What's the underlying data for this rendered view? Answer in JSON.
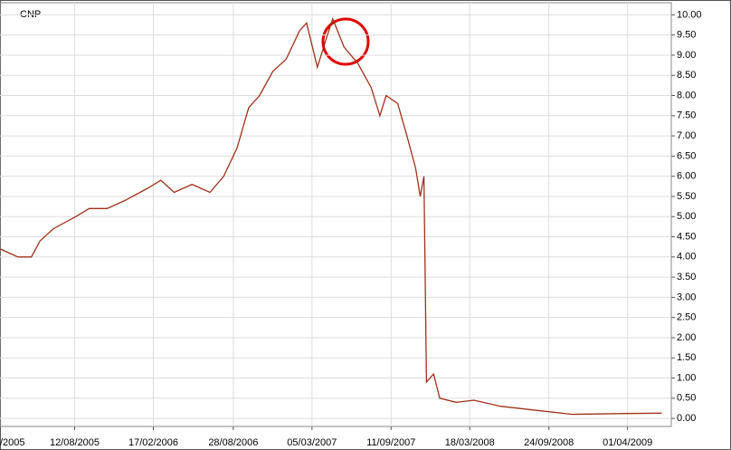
{
  "chart_data": {
    "type": "line",
    "title": "CNP",
    "x": [
      "2005-02-14",
      "2005-03-29",
      "2005-04-30",
      "2005-05-21",
      "2005-06-22",
      "2005-08-15",
      "2005-09-16",
      "2005-10-29",
      "2005-12-11",
      "2006-02-03",
      "2006-03-07",
      "2006-04-08",
      "2006-05-21",
      "2006-07-03",
      "2006-08-05",
      "2006-09-06",
      "2006-10-04",
      "2006-10-30",
      "2006-12-01",
      "2007-01-02",
      "2007-02-03",
      "2007-02-20",
      "2007-03-18",
      "2007-04-08",
      "2007-04-24",
      "2007-05-21",
      "2007-06-23",
      "2007-07-25",
      "2007-08-15",
      "2007-08-30",
      "2007-09-27",
      "2007-10-19",
      "2007-11-09",
      "2007-11-20",
      "2007-11-29",
      "2007-12-05",
      "2007-12-22",
      "2008-01-06",
      "2008-02-14",
      "2008-03-28",
      "2008-05-31",
      "2008-08-25",
      "2008-11-19",
      "2009-03-28",
      "2009-06-22"
    ],
    "series": [
      {
        "name": "CNP",
        "color": "#a0301a",
        "values": [
          4.2,
          4.0,
          4.0,
          4.4,
          4.7,
          5.0,
          5.2,
          5.2,
          5.4,
          5.7,
          5.9,
          5.6,
          5.8,
          5.6,
          6.0,
          6.7,
          7.7,
          8.0,
          8.6,
          8.9,
          9.6,
          9.8,
          8.7,
          9.4,
          9.9,
          9.2,
          8.8,
          8.2,
          7.5,
          8.0,
          7.8,
          7.0,
          6.2,
          5.5,
          6.0,
          0.9,
          1.1,
          0.5,
          0.4,
          0.45,
          0.3,
          0.2,
          0.1,
          0.12,
          0.13
        ]
      }
    ],
    "xlim": [
      "2005-02-05",
      "2009-07-15"
    ],
    "xticks": [
      {
        "value": "2005-02-05",
        "label": "/2005"
      },
      {
        "value": "2005-08-12",
        "label": "12/08/2005"
      },
      {
        "value": "2006-02-17",
        "label": "17/02/2006"
      },
      {
        "value": "2006-08-28",
        "label": "28/08/2006"
      },
      {
        "value": "2007-03-05",
        "label": "05/03/2007"
      },
      {
        "value": "2007-09-11",
        "label": "11/09/2007"
      },
      {
        "value": "2008-03-18",
        "label": "18/03/2008"
      },
      {
        "value": "2008-09-24",
        "label": "24/09/2008"
      },
      {
        "value": "2009-04-01",
        "label": "01/04/2009"
      }
    ],
    "ylim": [
      -0.2,
      10.3
    ],
    "yticks": [
      {
        "value": 0,
        "label": "0.00"
      },
      {
        "value": 0.5,
        "label": "0.50"
      },
      {
        "value": 1,
        "label": "1.00"
      },
      {
        "value": 1.5,
        "label": "1.50"
      },
      {
        "value": 2,
        "label": "2.00"
      },
      {
        "value": 2.5,
        "label": "2.50"
      },
      {
        "value": 3,
        "label": "3.00"
      },
      {
        "value": 3.5,
        "label": "3.50"
      },
      {
        "value": 4,
        "label": "4.00"
      },
      {
        "value": 4.5,
        "label": "4.50"
      },
      {
        "value": 5,
        "label": "5.00"
      },
      {
        "value": 5.5,
        "label": "5.50"
      },
      {
        "value": 6,
        "label": "6.00"
      },
      {
        "value": 6.5,
        "label": "6.50"
      },
      {
        "value": 7,
        "label": "7.00"
      },
      {
        "value": 7.5,
        "label": "7.50"
      },
      {
        "value": 8,
        "label": "8.00"
      },
      {
        "value": 8.5,
        "label": "8.50"
      },
      {
        "value": 9,
        "label": "9.00"
      },
      {
        "value": 9.5,
        "label": "9.50"
      },
      {
        "value": 10,
        "label": "10.00"
      }
    ],
    "grid": true
  }
}
